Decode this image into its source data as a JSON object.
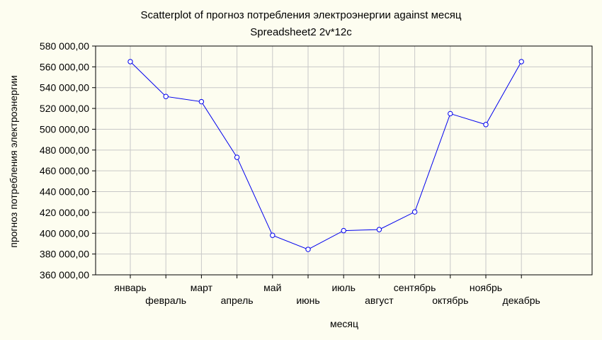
{
  "chart_data": {
    "type": "line",
    "title": "Scatterplot of прогноз потребления электроэнергии against месяц",
    "subtitle": "Spreadsheet2 2v*12c",
    "xlabel": "месяц",
    "ylabel": "прогноз потребления электроэнергии",
    "categories": [
      "январь",
      "февраль",
      "март",
      "апрель",
      "май",
      "июнь",
      "июль",
      "август",
      "сентябрь",
      "октябрь",
      "ноябрь",
      "декабрь"
    ],
    "values": [
      565000,
      531500,
      526500,
      473000,
      398000,
      384500,
      402500,
      403500,
      420500,
      515000,
      504500,
      565000
    ],
    "ylim": [
      360000,
      580000
    ],
    "yticks": [
      360000,
      380000,
      400000,
      420000,
      440000,
      460000,
      480000,
      500000,
      520000,
      540000,
      560000,
      580000
    ],
    "ytick_labels": [
      "360 000,00",
      "380 000,00",
      "400 000,00",
      "420 000,00",
      "440 000,00",
      "460 000,00",
      "480 000,00",
      "500 000,00",
      "520 000,00",
      "540 000,00",
      "560 000,00",
      "580 000,00"
    ],
    "grid": true,
    "line_color": "#0000ee",
    "marker": "open-circle",
    "background_color": "#fdfdf0",
    "grid_color": "#c8c8c8"
  }
}
